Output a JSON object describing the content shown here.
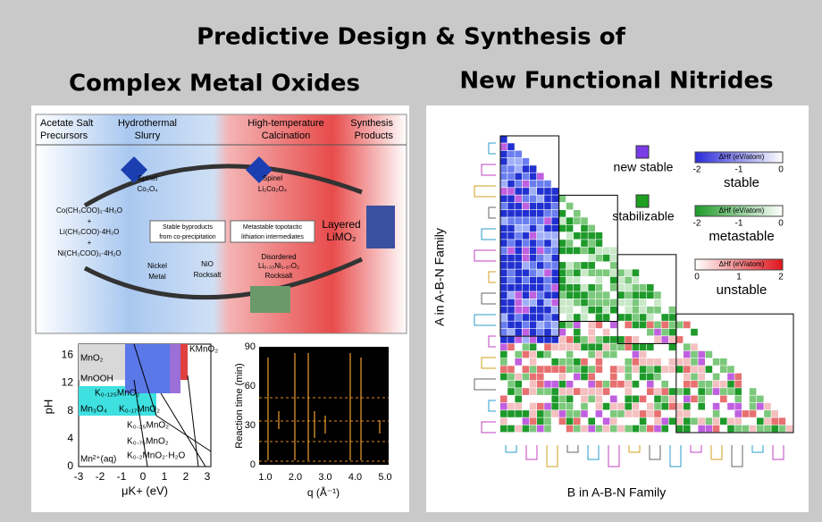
{
  "header": {
    "title": "Predictive Design & Synthesis of",
    "left_title": "Complex Metal Oxides",
    "right_title": "New Functional Nitrides"
  },
  "oxide_panel": {
    "stages": [
      [
        "Acetate Salt",
        "Precursors"
      ],
      [
        "Hydrothermal",
        "Slurry"
      ],
      [
        "High-temperature",
        "Calcination"
      ],
      [
        "Synthesis",
        "Products"
      ]
    ],
    "labels": [
      {
        "text": "Spinel",
        "x": 165,
        "y": 200
      },
      {
        "text": "Co₃O₄",
        "x": 165,
        "y": 212
      },
      {
        "text": "Spinel",
        "x": 305,
        "y": 200
      },
      {
        "text": "Li₂Co₂O₄",
        "x": 305,
        "y": 212
      },
      {
        "text": "Co(CH₃COO)₂·4H₂O",
        "x": 100,
        "y": 236
      },
      {
        "text": "+",
        "x": 100,
        "y": 248
      },
      {
        "text": "Li(CH₃COO)·4H₂O",
        "x": 100,
        "y": 260
      },
      {
        "text": "+",
        "x": 100,
        "y": 272
      },
      {
        "text": "Ni(CH₃COO)₂·4H₂O",
        "x": 100,
        "y": 284
      },
      {
        "text": "Stable byproducts",
        "x": 210,
        "y": 254
      },
      {
        "text": "from co-precipitation",
        "x": 210,
        "y": 265
      },
      {
        "text": "Metastable topotactic",
        "x": 305,
        "y": 254
      },
      {
        "text": "lithiation intermediates",
        "x": 305,
        "y": 265
      },
      {
        "text": "Layered",
        "x": 382,
        "y": 252
      },
      {
        "text": "LiMO₂",
        "x": 382,
        "y": 266
      },
      {
        "text": "Nickel",
        "x": 176,
        "y": 298
      },
      {
        "text": "Metal",
        "x": 176,
        "y": 310
      },
      {
        "text": "NiO",
        "x": 232,
        "y": 296
      },
      {
        "text": "Rocksalt",
        "x": 232,
        "y": 308
      },
      {
        "text": "Disordered",
        "x": 312,
        "y": 288
      },
      {
        "text": "Li₀.₃₃Ni₁.₆₇O₂",
        "x": 312,
        "y": 298
      },
      {
        "text": "Rocksalt",
        "x": 312,
        "y": 309
      }
    ],
    "phase_diagram": {
      "x_label": "μK+ (eV)",
      "y_label": "pH",
      "x_ticks": [
        "-3",
        "-2",
        "-1",
        "0",
        "1",
        "2",
        "3"
      ],
      "y_ticks": [
        "0",
        "4",
        "8",
        "12",
        "16"
      ],
      "regions": [
        {
          "text": "MnO₂",
          "x": 90,
          "y": 401
        },
        {
          "text": "MnOOH",
          "x": 90,
          "y": 424
        },
        {
          "text": "K₀.₁₂₅MnO₂",
          "x": 106,
          "y": 440
        },
        {
          "text": "Mn₃O₄",
          "x": 90,
          "y": 458
        },
        {
          "text": "K₀.₁₇MnO₂",
          "x": 133,
          "y": 458
        },
        {
          "text": "K₀.₂₅MnO₂",
          "x": 142,
          "y": 476
        },
        {
          "text": "K₀.₇₅MnO₂",
          "x": 142,
          "y": 494
        },
        {
          "text": "K₀.₂MnO₂·H₂O",
          "x": 142,
          "y": 510
        },
        {
          "text": "Mn²⁺(aq)",
          "x": 90,
          "y": 514
        },
        {
          "text": "KMnO₂",
          "x": 212,
          "y": 391
        }
      ]
    },
    "xrd": {
      "x_label": "q (Å⁻¹)",
      "y_label": "Reaction time (min)",
      "x_ticks": [
        "1.0",
        "2.0",
        "3.0",
        "4.0",
        "5.0"
      ],
      "y_ticks": [
        "0",
        "30",
        "60",
        "90"
      ]
    }
  },
  "nitride_panel": {
    "legend": [
      "new stable",
      "stabilizable"
    ],
    "scales": [
      {
        "title": "ΔHf (eV/atom)",
        "ticks": [
          "-2",
          "-1",
          "0"
        ],
        "label": "stable"
      },
      {
        "title": "ΔHf (eV/atom)",
        "ticks": [
          "-2",
          "-1",
          "0"
        ],
        "label": "metastable"
      },
      {
        "title": "ΔHf (eV/atom)",
        "ticks": [
          "0",
          "1",
          "2"
        ],
        "label": "unstable"
      }
    ],
    "y_label": "A in A-B-N Family",
    "x_label": "B in A-B-N Family"
  }
}
